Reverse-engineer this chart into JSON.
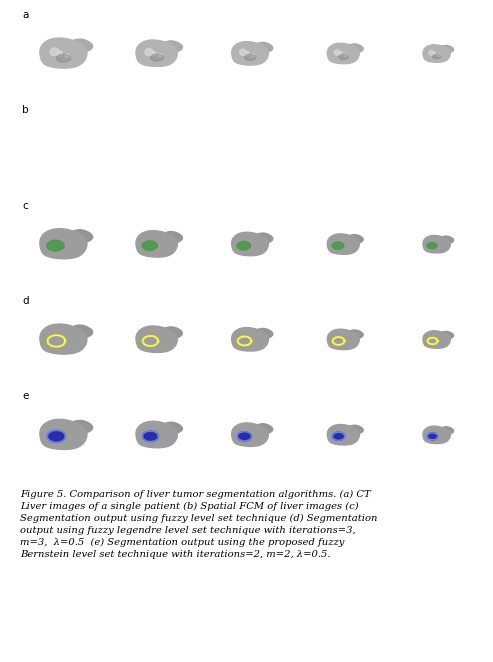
{
  "figure_width": 4.93,
  "figure_height": 6.62,
  "dpi": 100,
  "n_rows": 5,
  "n_cols": 5,
  "row_labels": [
    "a",
    "b",
    "c",
    "d",
    "e"
  ],
  "background_color": "#ffffff",
  "caption": "Figure 5. Comparison of liver tumor segmentation algorithms. (a) CT\nLiver images of a single patient (b) Spatial FCM of liver images (c)\nSegmentation output using fuzzy level set technique (d) Segmentation\noutput using fuzzy legendre level set technique with iterations=3,\nm=3,  λ=0.5  (e) Segmentation output using the proposed fuzzy\nBernstein level set technique with iterations=2, m=2, λ=0.5.",
  "caption_fontsize": 7.2,
  "label_fontsize": 7.5,
  "liver_base": 0.7,
  "liver_highlight": 0.85,
  "liver_shadow": 0.5,
  "green_color": "#4a9a4a",
  "yellow_color": "#dddd00",
  "blue_fill": "#2222aa",
  "blue_outline": "#6666dd",
  "white_blob": "#ffffff",
  "scale_factors": [
    1.0,
    0.88,
    0.78,
    0.68,
    0.58
  ]
}
